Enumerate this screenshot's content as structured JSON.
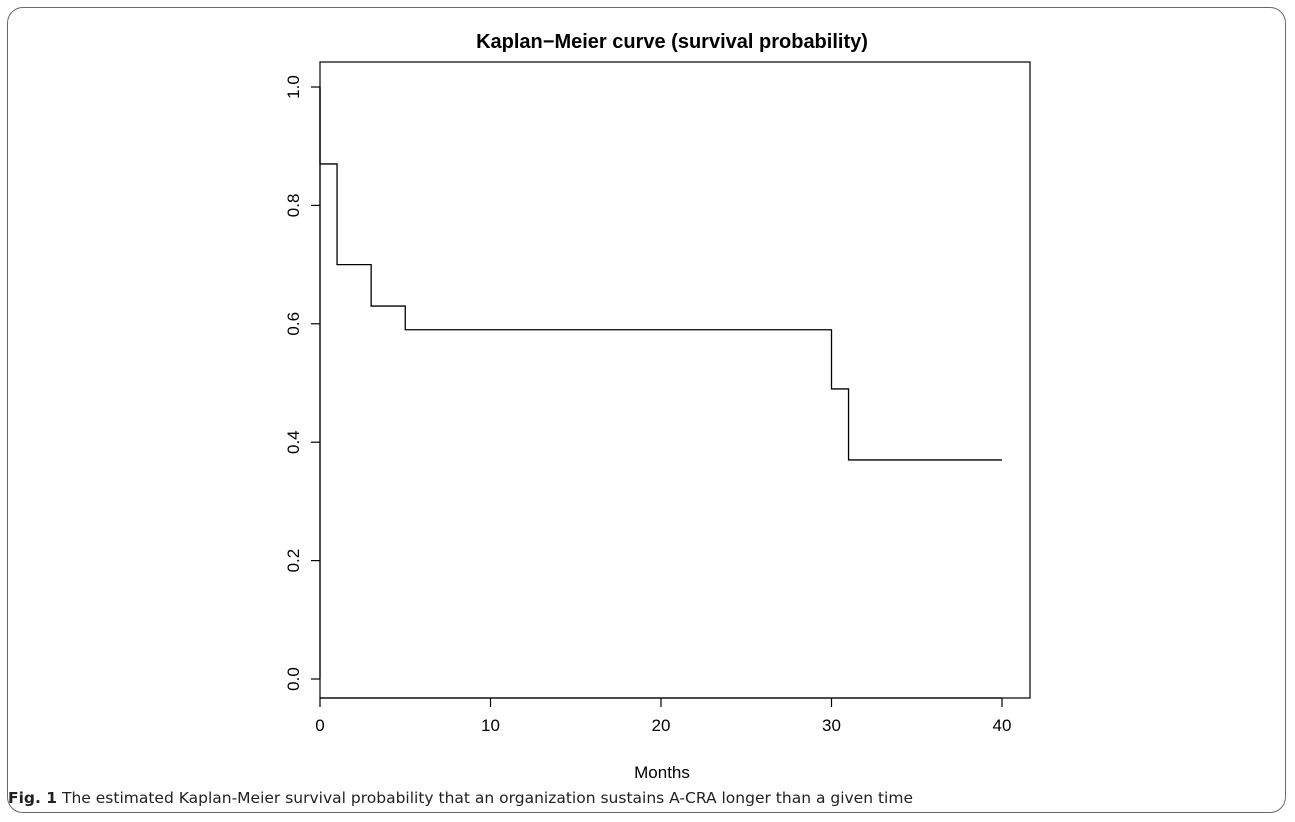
{
  "chart_data": {
    "type": "line",
    "step": true,
    "title": "Kaplan−Meier curve (survival probability)",
    "xlabel": "Months",
    "ylabel": "",
    "xlim": [
      0,
      40
    ],
    "ylim": [
      0,
      1
    ],
    "x_ticks": [
      0,
      10,
      20,
      30,
      40
    ],
    "y_ticks": [
      0.0,
      0.2,
      0.4,
      0.6,
      0.8,
      1.0
    ],
    "x_tick_labels": [
      "0",
      "10",
      "20",
      "30",
      "40"
    ],
    "y_tick_labels": [
      "0.0",
      "0.2",
      "0.4",
      "0.6",
      "0.8",
      "1.0"
    ],
    "grid": false,
    "legend": "none",
    "series": [
      {
        "x": [
          0,
          1,
          3,
          5,
          30,
          31,
          40
        ],
        "y": [
          0.87,
          0.7,
          0.63,
          0.59,
          0.49,
          0.37,
          0.37
        ]
      }
    ]
  },
  "caption": {
    "label": "Fig. 1",
    "text": " The estimated Kaplan-Meier survival probability that an organization sustains A-CRA longer than a given time"
  }
}
